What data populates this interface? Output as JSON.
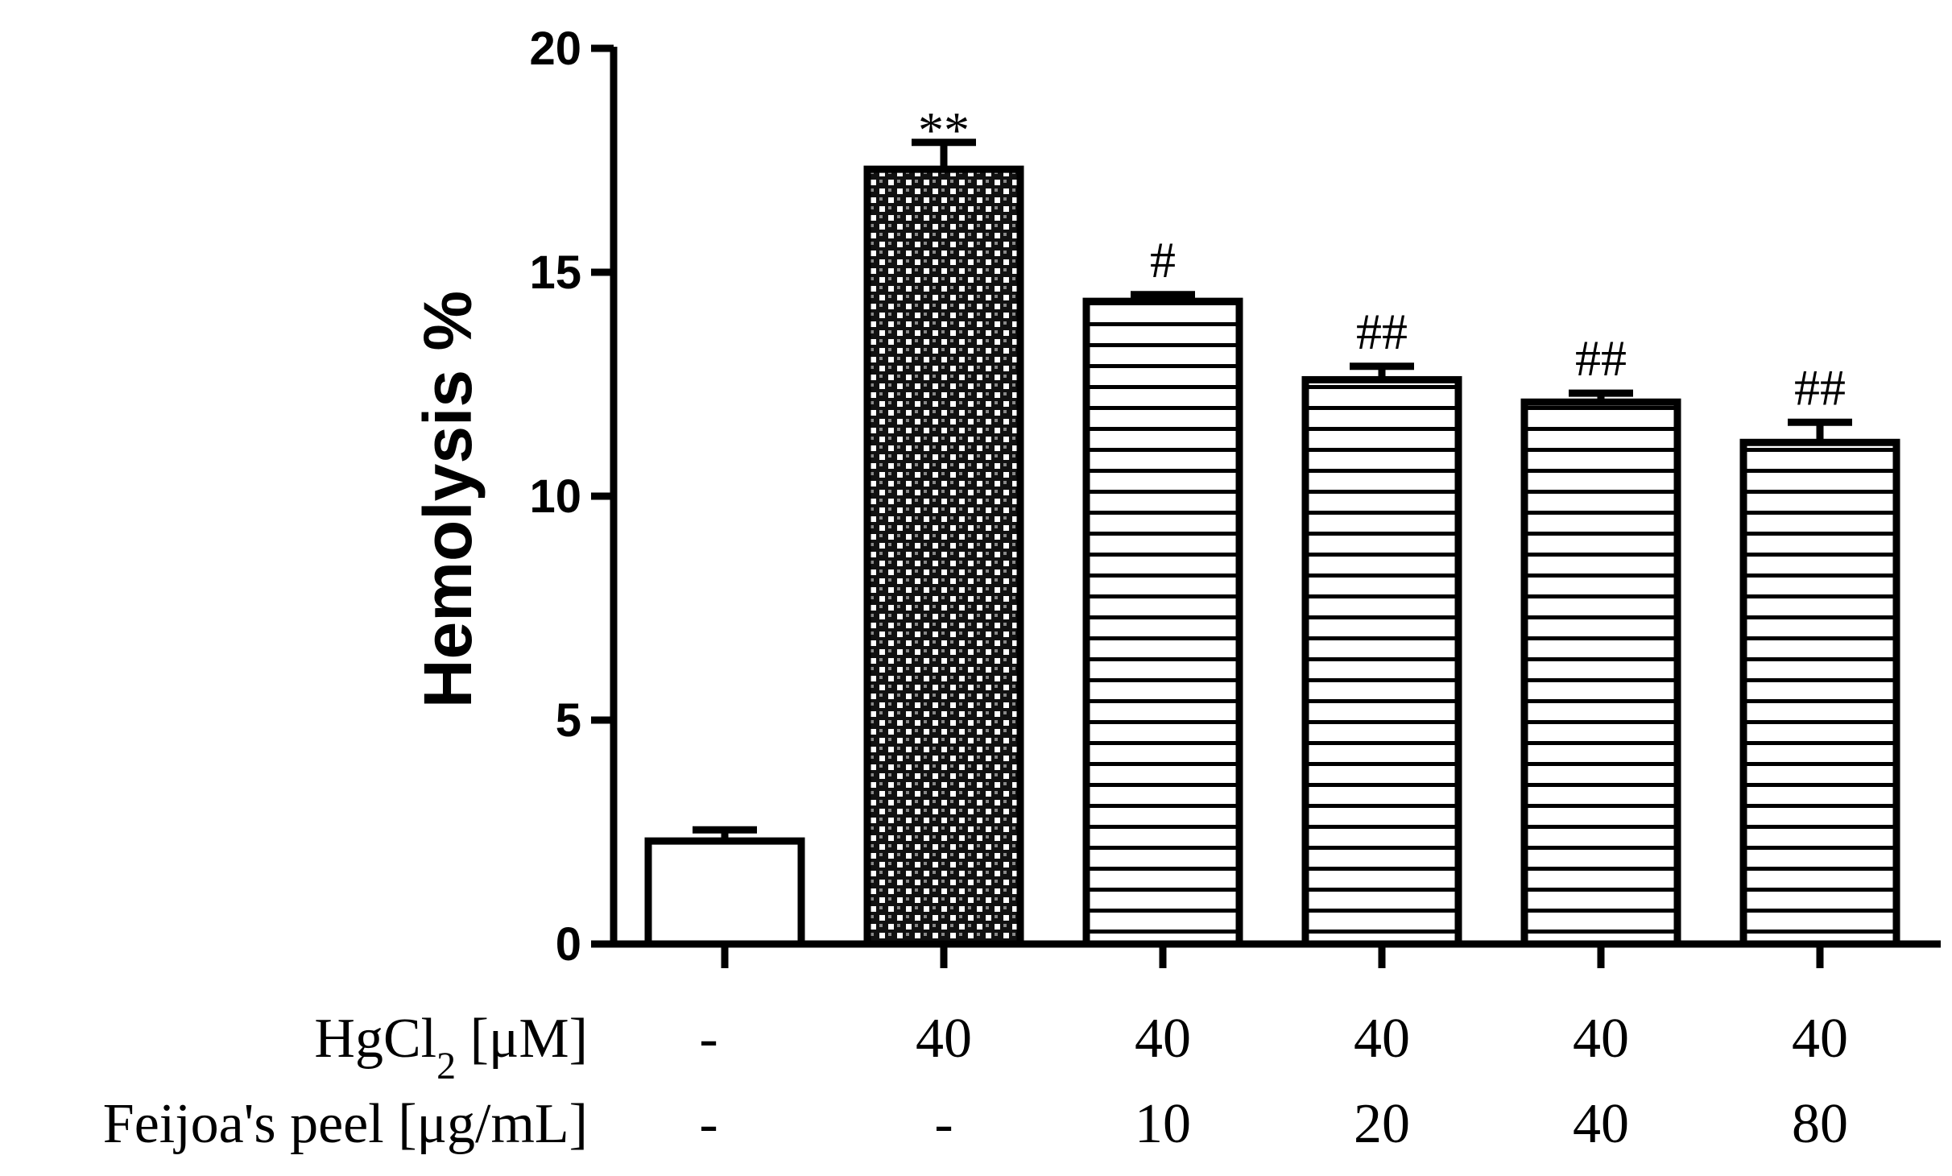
{
  "chart_data": {
    "type": "bar",
    "ylabel": "Hemolysis %",
    "ylim": [
      0,
      20
    ],
    "yticks": [
      0,
      5,
      10,
      15,
      20
    ],
    "values": [
      2.3,
      17.3,
      14.35,
      12.6,
      12.1,
      11.2
    ],
    "errors": [
      0.25,
      0.6,
      0.15,
      0.3,
      0.2,
      0.45
    ],
    "patterns": [
      "open",
      "checker",
      "stripes",
      "stripes",
      "stripes",
      "stripes"
    ],
    "significance": [
      "",
      "**",
      "#",
      "##",
      "##",
      "##"
    ],
    "rows": [
      {
        "label_main": "HgCl",
        "label_sub": "2",
        "label_unit": " [μM]",
        "values": [
          "-",
          "40",
          "40",
          "40",
          "40",
          "40"
        ]
      },
      {
        "label_main": "Feijoa's peel [μg/mL]",
        "label_sub": "",
        "label_unit": "",
        "values": [
          "-",
          "-",
          "10",
          "20",
          "40",
          "80"
        ]
      }
    ]
  }
}
